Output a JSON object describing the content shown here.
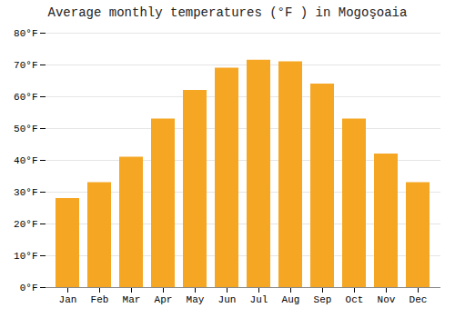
{
  "chart_data": {
    "type": "bar",
    "title": "Average monthly temperatures (°F ) in Mogoşoaia",
    "categories": [
      "Jan",
      "Feb",
      "Mar",
      "Apr",
      "May",
      "Jun",
      "Jul",
      "Aug",
      "Sep",
      "Oct",
      "Nov",
      "Dec"
    ],
    "values": [
      28,
      33,
      41,
      53,
      62,
      69,
      71.5,
      71,
      64,
      53,
      42,
      33
    ],
    "color": "#F5A623",
    "ylim": [
      0,
      80
    ],
    "yticks": [
      {
        "value": 0,
        "label": "0°F"
      },
      {
        "value": 10,
        "label": "10°F"
      },
      {
        "value": 20,
        "label": "20°F"
      },
      {
        "value": 30,
        "label": "30°F"
      },
      {
        "value": 40,
        "label": "40°F"
      },
      {
        "value": 50,
        "label": "50°F"
      },
      {
        "value": 60,
        "label": "60°F"
      },
      {
        "value": 70,
        "label": "70°F"
      },
      {
        "value": 80,
        "label": "80°F"
      }
    ],
    "grid": true
  }
}
